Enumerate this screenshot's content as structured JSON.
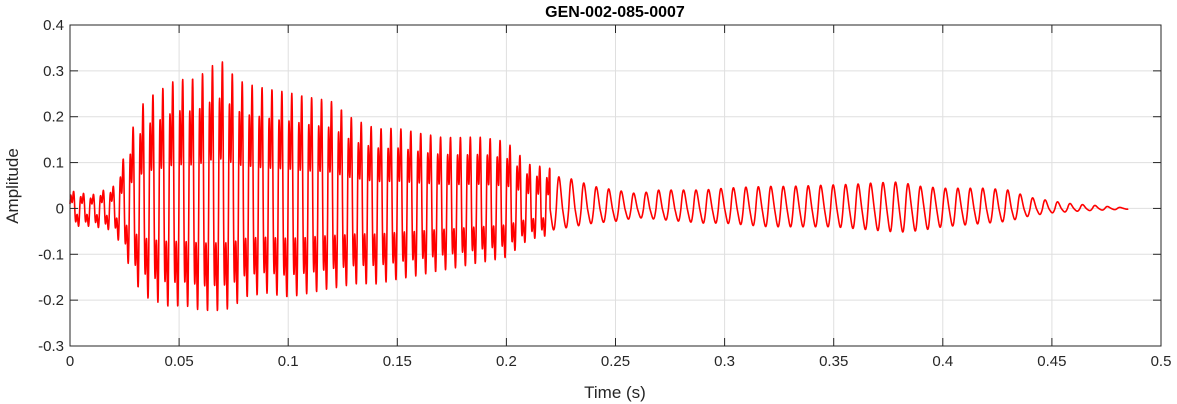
{
  "chart_data": {
    "type": "line",
    "title": "GEN-002-085-0007",
    "xlabel": "Time (s)",
    "ylabel": "Amplitude",
    "xlim": [
      0,
      0.5
    ],
    "ylim": [
      -0.3,
      0.4
    ],
    "xticks": [
      0,
      0.05,
      0.1,
      0.15,
      0.2,
      0.25,
      0.3,
      0.35,
      0.4,
      0.45,
      0.5
    ],
    "xtick_labels": [
      "0",
      "0.05",
      "0.1",
      "0.15",
      "0.2",
      "0.25",
      "0.3",
      "0.35",
      "0.4",
      "0.45",
      "0.5"
    ],
    "yticks": [
      -0.3,
      -0.2,
      -0.1,
      0,
      0.1,
      0.2,
      0.3,
      0.4
    ],
    "ytick_labels": [
      "-0.3",
      "-0.2",
      "-0.1",
      "0",
      "0.1",
      "0.2",
      "0.3",
      "0.4"
    ],
    "grid": true,
    "line_color": "#ff0000",
    "series": [
      {
        "x": [
          0,
          0.01,
          0.02,
          0.025,
          0.03,
          0.035,
          0.04,
          0.045,
          0.05,
          0.055,
          0.06,
          0.065,
          0.07,
          0.075,
          0.08,
          0.09,
          0.1,
          0.11,
          0.12,
          0.13,
          0.14,
          0.15,
          0.16,
          0.17,
          0.18,
          0.19,
          0.2,
          0.21,
          0.22,
          0.23,
          0.24,
          0.25,
          0.26,
          0.27,
          0.28,
          0.29,
          0.3,
          0.31,
          0.32,
          0.33,
          0.34,
          0.35,
          0.36,
          0.37,
          0.38,
          0.39,
          0.4,
          0.41,
          0.42,
          0.43,
          0.44,
          0.45,
          0.46,
          0.47,
          0.48,
          0.485
        ],
        "max": [
          0.04,
          0.03,
          0.05,
          0.12,
          0.2,
          0.25,
          0.26,
          0.28,
          0.29,
          0.29,
          0.3,
          0.32,
          0.33,
          0.3,
          0.28,
          0.27,
          0.26,
          0.25,
          0.24,
          0.2,
          0.18,
          0.18,
          0.17,
          0.16,
          0.16,
          0.16,
          0.15,
          0.1,
          0.09,
          0.08,
          0.06,
          0.05,
          0.04,
          0.05,
          0.05,
          0.05,
          0.055,
          0.058,
          0.06,
          0.06,
          0.062,
          0.064,
          0.066,
          0.07,
          0.072,
          0.06,
          0.055,
          0.055,
          0.055,
          0.05,
          0.03,
          0.02,
          0.012,
          0.008,
          0.003,
          0.002
        ],
        "min": [
          -0.04,
          -0.04,
          -0.05,
          -0.1,
          -0.17,
          -0.2,
          -0.21,
          -0.22,
          -0.22,
          -0.22,
          -0.23,
          -0.23,
          -0.23,
          -0.22,
          -0.2,
          -0.19,
          -0.2,
          -0.19,
          -0.18,
          -0.17,
          -0.17,
          -0.16,
          -0.15,
          -0.14,
          -0.13,
          -0.12,
          -0.11,
          -0.07,
          -0.06,
          -0.05,
          -0.04,
          -0.035,
          -0.025,
          -0.03,
          -0.035,
          -0.04,
          -0.04,
          -0.045,
          -0.05,
          -0.05,
          -0.05,
          -0.05,
          -0.055,
          -0.06,
          -0.065,
          -0.06,
          -0.05,
          -0.045,
          -0.04,
          -0.035,
          -0.02,
          -0.012,
          -0.008,
          -0.005,
          -0.003,
          -0.002
        ]
      }
    ]
  }
}
